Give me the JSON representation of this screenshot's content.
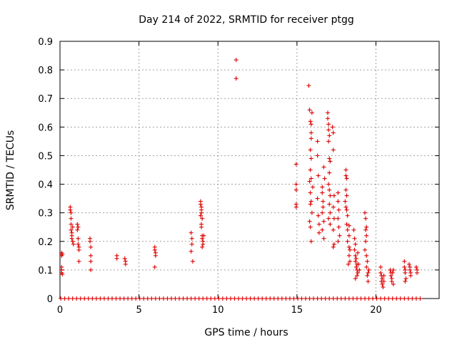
{
  "chart_data": {
    "type": "scatter",
    "title": "Day 214 of 2022, SRMTID for receiver ptgg",
    "xlabel": "GPS time / hours",
    "ylabel": "SRMTID / TECUs",
    "xlim": [
      0,
      24
    ],
    "ylim": [
      0,
      0.9
    ],
    "x_ticks": [
      "0",
      "5",
      "10",
      "15",
      "20"
    ],
    "x_tick_values": [
      0,
      5,
      10,
      15,
      20
    ],
    "y_ticks": [
      "0",
      "0.1",
      "0.2",
      "0.3",
      "0.4",
      "0.5",
      "0.6",
      "0.7",
      "0.8",
      "0.9"
    ],
    "y_tick_values": [
      0,
      0.1,
      0.2,
      0.3,
      0.4,
      0.5,
      0.6,
      0.7,
      0.8,
      0.9
    ],
    "grid": true,
    "marker": "+",
    "series": [
      {
        "name": "SRMTID",
        "color": "#dd0000",
        "points": [
          [
            0.1,
            0.16
          ],
          [
            0.1,
            0.15
          ],
          [
            0.1,
            0.11
          ],
          [
            0.1,
            0.1
          ],
          [
            0.1,
            0.09
          ],
          [
            0.15,
            0.155
          ],
          [
            0.15,
            0.085
          ],
          [
            0.65,
            0.32
          ],
          [
            0.65,
            0.31
          ],
          [
            0.7,
            0.28
          ],
          [
            0.7,
            0.26
          ],
          [
            0.7,
            0.24
          ],
          [
            0.75,
            0.23
          ],
          [
            0.75,
            0.22
          ],
          [
            0.75,
            0.21
          ],
          [
            0.8,
            0.2
          ],
          [
            0.8,
            0.25
          ],
          [
            0.85,
            0.19
          ],
          [
            0.7,
            0.3
          ],
          [
            1.1,
            0.26
          ],
          [
            1.1,
            0.24
          ],
          [
            1.15,
            0.21
          ],
          [
            1.15,
            0.19
          ],
          [
            1.2,
            0.18
          ],
          [
            1.2,
            0.17
          ],
          [
            1.2,
            0.13
          ],
          [
            1.15,
            0.25
          ],
          [
            1.9,
            0.21
          ],
          [
            1.9,
            0.2
          ],
          [
            1.95,
            0.18
          ],
          [
            1.95,
            0.15
          ],
          [
            1.95,
            0.13
          ],
          [
            1.95,
            0.1
          ],
          [
            3.6,
            0.15
          ],
          [
            3.6,
            0.14
          ],
          [
            4.1,
            0.14
          ],
          [
            4.15,
            0.13
          ],
          [
            4.15,
            0.12
          ],
          [
            6.0,
            0.18
          ],
          [
            6.0,
            0.17
          ],
          [
            6.05,
            0.16
          ],
          [
            6.05,
            0.15
          ],
          [
            6.0,
            0.11
          ],
          [
            8.3,
            0.23
          ],
          [
            8.35,
            0.21
          ],
          [
            8.35,
            0.19
          ],
          [
            8.3,
            0.165
          ],
          [
            8.4,
            0.13
          ],
          [
            8.9,
            0.34
          ],
          [
            8.9,
            0.33
          ],
          [
            8.95,
            0.32
          ],
          [
            8.95,
            0.31
          ],
          [
            8.95,
            0.3
          ],
          [
            8.9,
            0.29
          ],
          [
            9.0,
            0.28
          ],
          [
            8.95,
            0.26
          ],
          [
            8.95,
            0.25
          ],
          [
            9.0,
            0.22
          ],
          [
            9.0,
            0.21
          ],
          [
            9.05,
            0.2
          ],
          [
            9.05,
            0.19
          ],
          [
            9.0,
            0.18
          ],
          [
            9.1,
            0.22
          ],
          [
            11.15,
            0.835
          ],
          [
            11.15,
            0.77
          ],
          [
            14.95,
            0.47
          ],
          [
            14.95,
            0.4
          ],
          [
            14.95,
            0.38
          ],
          [
            14.95,
            0.33
          ],
          [
            14.95,
            0.32
          ],
          [
            15.75,
            0.745
          ],
          [
            15.8,
            0.66
          ],
          [
            15.85,
            0.62
          ],
          [
            15.9,
            0.61
          ],
          [
            15.95,
            0.65
          ],
          [
            15.9,
            0.58
          ],
          [
            15.9,
            0.56
          ],
          [
            15.85,
            0.52
          ],
          [
            15.9,
            0.49
          ],
          [
            15.85,
            0.45
          ],
          [
            15.8,
            0.41
          ],
          [
            15.85,
            0.37
          ],
          [
            15.9,
            0.34
          ],
          [
            15.85,
            0.33
          ],
          [
            15.95,
            0.3
          ],
          [
            15.8,
            0.27
          ],
          [
            15.85,
            0.25
          ],
          [
            15.9,
            0.2
          ],
          [
            15.9,
            0.42
          ],
          [
            16.0,
            0.39
          ],
          [
            16.3,
            0.55
          ],
          [
            16.3,
            0.5
          ],
          [
            16.35,
            0.43
          ],
          [
            16.3,
            0.35
          ],
          [
            16.35,
            0.29
          ],
          [
            16.4,
            0.26
          ],
          [
            16.4,
            0.23
          ],
          [
            16.6,
            0.39
          ],
          [
            16.6,
            0.37
          ],
          [
            16.65,
            0.34
          ],
          [
            16.65,
            0.32
          ],
          [
            16.6,
            0.3
          ],
          [
            16.7,
            0.27
          ],
          [
            16.6,
            0.24
          ],
          [
            16.7,
            0.21
          ],
          [
            16.7,
            0.46
          ],
          [
            16.75,
            0.42
          ],
          [
            16.95,
            0.65
          ],
          [
            16.95,
            0.63
          ],
          [
            17.0,
            0.61
          ],
          [
            17.0,
            0.59
          ],
          [
            17.05,
            0.57
          ],
          [
            17.0,
            0.55
          ],
          [
            17.05,
            0.49
          ],
          [
            17.1,
            0.48
          ],
          [
            17.05,
            0.44
          ],
          [
            17.0,
            0.4
          ],
          [
            17.05,
            0.38
          ],
          [
            17.1,
            0.36
          ],
          [
            17.05,
            0.33
          ],
          [
            17.1,
            0.3
          ],
          [
            17.0,
            0.28
          ],
          [
            17.1,
            0.26
          ],
          [
            17.25,
            0.6
          ],
          [
            17.3,
            0.58
          ],
          [
            17.3,
            0.52
          ],
          [
            17.35,
            0.36
          ],
          [
            17.3,
            0.32
          ],
          [
            17.35,
            0.28
          ],
          [
            17.3,
            0.24
          ],
          [
            17.35,
            0.19
          ],
          [
            17.3,
            0.18
          ],
          [
            17.6,
            0.37
          ],
          [
            17.6,
            0.34
          ],
          [
            17.65,
            0.31
          ],
          [
            17.6,
            0.28
          ],
          [
            17.65,
            0.25
          ],
          [
            17.7,
            0.22
          ],
          [
            17.6,
            0.2
          ],
          [
            18.1,
            0.45
          ],
          [
            18.1,
            0.43
          ],
          [
            18.15,
            0.42
          ],
          [
            18.1,
            0.38
          ],
          [
            18.15,
            0.36
          ],
          [
            18.05,
            0.34
          ],
          [
            18.1,
            0.32
          ],
          [
            18.15,
            0.31
          ],
          [
            18.2,
            0.29
          ],
          [
            18.15,
            0.26
          ],
          [
            18.2,
            0.24
          ],
          [
            18.3,
            0.22
          ],
          [
            18.2,
            0.2
          ],
          [
            18.3,
            0.18
          ],
          [
            18.35,
            0.17
          ],
          [
            18.3,
            0.15
          ],
          [
            18.35,
            0.13
          ],
          [
            18.25,
            0.12
          ],
          [
            18.3,
            0.255
          ],
          [
            18.6,
            0.24
          ],
          [
            18.65,
            0.21
          ],
          [
            18.7,
            0.19
          ],
          [
            18.65,
            0.17
          ],
          [
            18.7,
            0.15
          ],
          [
            18.75,
            0.14
          ],
          [
            18.7,
            0.13
          ],
          [
            18.8,
            0.12
          ],
          [
            18.75,
            0.11
          ],
          [
            18.8,
            0.1
          ],
          [
            18.85,
            0.09
          ],
          [
            18.8,
            0.08
          ],
          [
            18.85,
            0.16
          ],
          [
            18.9,
            0.12
          ],
          [
            18.95,
            0.1
          ],
          [
            18.7,
            0.07
          ],
          [
            19.3,
            0.3
          ],
          [
            19.35,
            0.28
          ],
          [
            19.4,
            0.25
          ],
          [
            19.4,
            0.22
          ],
          [
            19.35,
            0.2
          ],
          [
            19.3,
            0.17
          ],
          [
            19.4,
            0.15
          ],
          [
            19.45,
            0.13
          ],
          [
            19.4,
            0.11
          ],
          [
            19.5,
            0.09
          ],
          [
            19.45,
            0.08
          ],
          [
            19.5,
            0.06
          ],
          [
            19.35,
            0.24
          ],
          [
            19.55,
            0.1
          ],
          [
            20.3,
            0.11
          ],
          [
            20.3,
            0.09
          ],
          [
            20.35,
            0.08
          ],
          [
            20.4,
            0.07
          ],
          [
            20.35,
            0.06
          ],
          [
            20.4,
            0.05
          ],
          [
            20.45,
            0.04
          ],
          [
            20.5,
            0.08
          ],
          [
            20.5,
            0.06
          ],
          [
            20.9,
            0.1
          ],
          [
            20.95,
            0.09
          ],
          [
            20.95,
            0.08
          ],
          [
            21.0,
            0.07
          ],
          [
            21.0,
            0.06
          ],
          [
            21.05,
            0.09
          ],
          [
            21.1,
            0.05
          ],
          [
            21.1,
            0.1
          ],
          [
            21.8,
            0.13
          ],
          [
            21.8,
            0.11
          ],
          [
            21.85,
            0.1
          ],
          [
            21.85,
            0.09
          ],
          [
            21.9,
            0.07
          ],
          [
            21.85,
            0.06
          ],
          [
            22.1,
            0.12
          ],
          [
            22.15,
            0.11
          ],
          [
            22.15,
            0.1
          ],
          [
            22.2,
            0.09
          ],
          [
            22.2,
            0.08
          ],
          [
            22.55,
            0.11
          ],
          [
            22.6,
            0.1
          ],
          [
            22.6,
            0.09
          ],
          [
            0.05,
            0
          ],
          [
            0.3,
            0
          ],
          [
            0.55,
            0
          ],
          [
            0.8,
            0
          ],
          [
            1.05,
            0
          ],
          [
            1.3,
            0
          ],
          [
            1.55,
            0
          ],
          [
            1.8,
            0
          ],
          [
            2.05,
            0
          ],
          [
            2.3,
            0
          ],
          [
            2.55,
            0
          ],
          [
            2.8,
            0
          ],
          [
            3.05,
            0
          ],
          [
            3.3,
            0
          ],
          [
            3.55,
            0
          ],
          [
            3.8,
            0
          ],
          [
            4.05,
            0
          ],
          [
            4.3,
            0
          ],
          [
            4.55,
            0
          ],
          [
            4.8,
            0
          ],
          [
            5.05,
            0
          ],
          [
            5.3,
            0
          ],
          [
            5.55,
            0
          ],
          [
            5.8,
            0
          ],
          [
            6.05,
            0
          ],
          [
            6.3,
            0
          ],
          [
            6.55,
            0
          ],
          [
            6.8,
            0
          ],
          [
            7.05,
            0
          ],
          [
            7.3,
            0
          ],
          [
            7.55,
            0
          ],
          [
            7.8,
            0
          ],
          [
            8.05,
            0
          ],
          [
            8.3,
            0
          ],
          [
            8.55,
            0
          ],
          [
            8.8,
            0
          ],
          [
            9.05,
            0
          ],
          [
            9.3,
            0
          ],
          [
            9.55,
            0
          ],
          [
            9.8,
            0
          ],
          [
            10.05,
            0
          ],
          [
            10.3,
            0
          ],
          [
            10.55,
            0
          ],
          [
            10.8,
            0
          ],
          [
            11.05,
            0
          ],
          [
            11.3,
            0
          ],
          [
            11.55,
            0
          ],
          [
            11.8,
            0
          ],
          [
            12.05,
            0
          ],
          [
            12.3,
            0
          ],
          [
            12.55,
            0
          ],
          [
            12.8,
            0
          ],
          [
            13.05,
            0
          ],
          [
            13.3,
            0
          ],
          [
            13.55,
            0
          ],
          [
            13.8,
            0
          ],
          [
            14.05,
            0
          ],
          [
            14.3,
            0
          ],
          [
            14.55,
            0
          ],
          [
            14.8,
            0
          ],
          [
            15.05,
            0
          ],
          [
            15.3,
            0
          ],
          [
            15.55,
            0
          ],
          [
            15.8,
            0
          ],
          [
            16.05,
            0
          ],
          [
            16.3,
            0
          ],
          [
            16.55,
            0
          ],
          [
            16.8,
            0
          ],
          [
            17.05,
            0
          ],
          [
            17.3,
            0
          ],
          [
            17.55,
            0
          ],
          [
            17.8,
            0
          ],
          [
            18.05,
            0
          ],
          [
            18.3,
            0
          ],
          [
            18.55,
            0
          ],
          [
            18.8,
            0
          ],
          [
            19.05,
            0
          ],
          [
            19.3,
            0
          ],
          [
            19.55,
            0
          ],
          [
            19.8,
            0
          ],
          [
            20.05,
            0
          ],
          [
            20.3,
            0
          ],
          [
            20.55,
            0
          ],
          [
            20.8,
            0
          ],
          [
            21.05,
            0
          ],
          [
            21.3,
            0
          ],
          [
            21.55,
            0
          ],
          [
            21.8,
            0
          ],
          [
            22.05,
            0
          ],
          [
            22.3,
            0
          ],
          [
            22.55,
            0
          ],
          [
            22.8,
            0
          ]
        ]
      }
    ]
  }
}
